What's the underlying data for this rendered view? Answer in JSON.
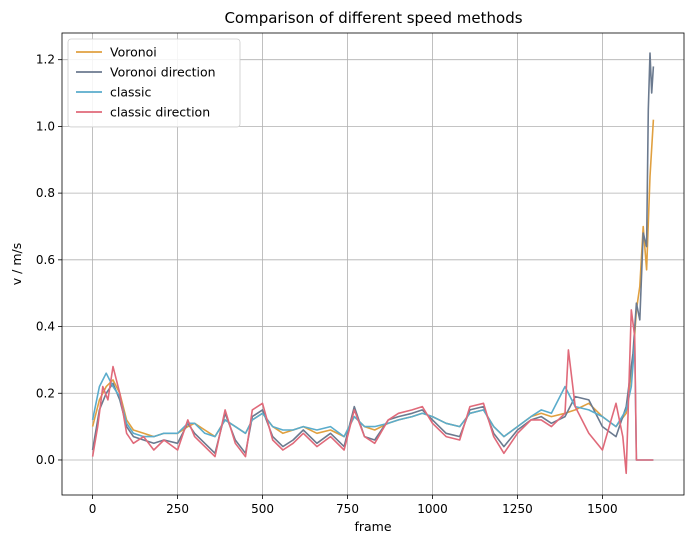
{
  "chart_data": {
    "type": "line",
    "title": "Comparison of different speed methods",
    "xlabel": "frame",
    "ylabel": "v / m/s",
    "xlim": [
      -90,
      1740
    ],
    "ylim": [
      -0.105,
      1.28
    ],
    "xticks": [
      0,
      250,
      500,
      750,
      1000,
      1250,
      1500
    ],
    "yticks": [
      0.0,
      0.2,
      0.4,
      0.6,
      0.8,
      1.0,
      1.2
    ],
    "xtick_labels": [
      "0",
      "250",
      "500",
      "750",
      "1000",
      "1250",
      "1500"
    ],
    "ytick_labels": [
      "0.0",
      "0.2",
      "0.4",
      "0.6",
      "0.8",
      "1.0",
      "1.2"
    ],
    "grid": true,
    "legend_position": "top-left",
    "series": [
      {
        "name": "Voronoi",
        "color": "#e0a040",
        "x": [
          0,
          20,
          40,
          60,
          80,
          100,
          120,
          150,
          180,
          210,
          250,
          280,
          300,
          330,
          360,
          390,
          420,
          450,
          470,
          500,
          530,
          560,
          590,
          620,
          660,
          700,
          740,
          770,
          800,
          830,
          870,
          900,
          940,
          970,
          1000,
          1040,
          1080,
          1110,
          1150,
          1180,
          1210,
          1250,
          1290,
          1320,
          1350,
          1390,
          1420,
          1460,
          1500,
          1540,
          1570,
          1590,
          1600,
          1610,
          1620,
          1630,
          1640,
          1650
        ],
        "y": [
          0.1,
          0.18,
          0.22,
          0.24,
          0.2,
          0.12,
          0.09,
          0.08,
          0.07,
          0.08,
          0.08,
          0.1,
          0.11,
          0.09,
          0.07,
          0.12,
          0.1,
          0.08,
          0.12,
          0.14,
          0.1,
          0.08,
          0.09,
          0.1,
          0.08,
          0.09,
          0.07,
          0.13,
          0.1,
          0.09,
          0.11,
          0.12,
          0.13,
          0.14,
          0.13,
          0.11,
          0.1,
          0.14,
          0.15,
          0.1,
          0.07,
          0.1,
          0.13,
          0.14,
          0.13,
          0.14,
          0.15,
          0.17,
          0.13,
          0.1,
          0.14,
          0.3,
          0.45,
          0.52,
          0.7,
          0.57,
          0.85,
          1.02
        ]
      },
      {
        "name": "Voronoi direction",
        "color": "#6b7a8f",
        "x": [
          0,
          20,
          40,
          60,
          80,
          100,
          120,
          150,
          180,
          210,
          250,
          280,
          300,
          330,
          360,
          390,
          420,
          450,
          470,
          500,
          530,
          560,
          590,
          620,
          660,
          700,
          740,
          770,
          800,
          830,
          870,
          900,
          940,
          970,
          1000,
          1040,
          1080,
          1110,
          1150,
          1180,
          1210,
          1250,
          1290,
          1320,
          1350,
          1390,
          1420,
          1460,
          1500,
          1540,
          1570,
          1590,
          1600,
          1610,
          1620,
          1630,
          1635,
          1640,
          1645,
          1650
        ],
        "y": [
          0.03,
          0.15,
          0.2,
          0.23,
          0.18,
          0.1,
          0.07,
          0.06,
          0.05,
          0.06,
          0.05,
          0.11,
          0.08,
          0.05,
          0.02,
          0.14,
          0.06,
          0.02,
          0.13,
          0.15,
          0.07,
          0.04,
          0.06,
          0.09,
          0.05,
          0.08,
          0.04,
          0.16,
          0.07,
          0.06,
          0.12,
          0.13,
          0.14,
          0.15,
          0.12,
          0.08,
          0.07,
          0.15,
          0.16,
          0.08,
          0.04,
          0.09,
          0.12,
          0.13,
          0.11,
          0.13,
          0.19,
          0.18,
          0.1,
          0.07,
          0.16,
          0.32,
          0.47,
          0.42,
          0.68,
          0.64,
          1.05,
          1.22,
          1.1,
          1.18
        ]
      },
      {
        "name": "classic",
        "color": "#5aaccc",
        "x": [
          0,
          20,
          40,
          60,
          80,
          100,
          120,
          150,
          180,
          210,
          250,
          280,
          300,
          330,
          360,
          390,
          420,
          450,
          470,
          500,
          530,
          560,
          590,
          620,
          660,
          700,
          740,
          770,
          800,
          830,
          870,
          900,
          940,
          970,
          1000,
          1040,
          1080,
          1110,
          1150,
          1180,
          1210,
          1250,
          1290,
          1320,
          1350,
          1390,
          1420,
          1460,
          1500,
          1540,
          1570,
          1585,
          1595,
          1600,
          1650
        ],
        "y": [
          0.12,
          0.22,
          0.26,
          0.22,
          0.19,
          0.11,
          0.08,
          0.07,
          0.07,
          0.08,
          0.08,
          0.11,
          0.11,
          0.08,
          0.07,
          0.12,
          0.1,
          0.08,
          0.12,
          0.14,
          0.1,
          0.09,
          0.09,
          0.1,
          0.09,
          0.1,
          0.07,
          0.13,
          0.1,
          0.1,
          0.11,
          0.12,
          0.13,
          0.14,
          0.13,
          0.11,
          0.1,
          0.14,
          0.15,
          0.1,
          0.07,
          0.1,
          0.13,
          0.15,
          0.14,
          0.22,
          0.16,
          0.15,
          0.13,
          0.1,
          0.15,
          0.22,
          0.35,
          0.0,
          0.0
        ]
      },
      {
        "name": "classic direction",
        "color": "#e06a7a",
        "x": [
          0,
          15,
          30,
          45,
          60,
          80,
          100,
          120,
          150,
          180,
          210,
          250,
          280,
          300,
          330,
          360,
          390,
          420,
          450,
          470,
          500,
          530,
          560,
          590,
          620,
          660,
          700,
          740,
          770,
          800,
          830,
          870,
          900,
          940,
          970,
          1000,
          1040,
          1080,
          1110,
          1150,
          1180,
          1210,
          1250,
          1290,
          1320,
          1350,
          1390,
          1400,
          1420,
          1460,
          1500,
          1540,
          1560,
          1570,
          1585,
          1595,
          1600,
          1650
        ],
        "y": [
          0.01,
          0.1,
          0.22,
          0.18,
          0.28,
          0.2,
          0.08,
          0.05,
          0.07,
          0.03,
          0.06,
          0.03,
          0.12,
          0.07,
          0.04,
          0.01,
          0.15,
          0.05,
          0.01,
          0.15,
          0.17,
          0.06,
          0.03,
          0.05,
          0.08,
          0.04,
          0.07,
          0.03,
          0.15,
          0.07,
          0.05,
          0.12,
          0.14,
          0.15,
          0.16,
          0.11,
          0.07,
          0.06,
          0.16,
          0.17,
          0.07,
          0.02,
          0.08,
          0.12,
          0.12,
          0.1,
          0.14,
          0.33,
          0.16,
          0.08,
          0.03,
          0.17,
          0.07,
          -0.04,
          0.45,
          0.37,
          0.0,
          0.0
        ]
      }
    ]
  }
}
